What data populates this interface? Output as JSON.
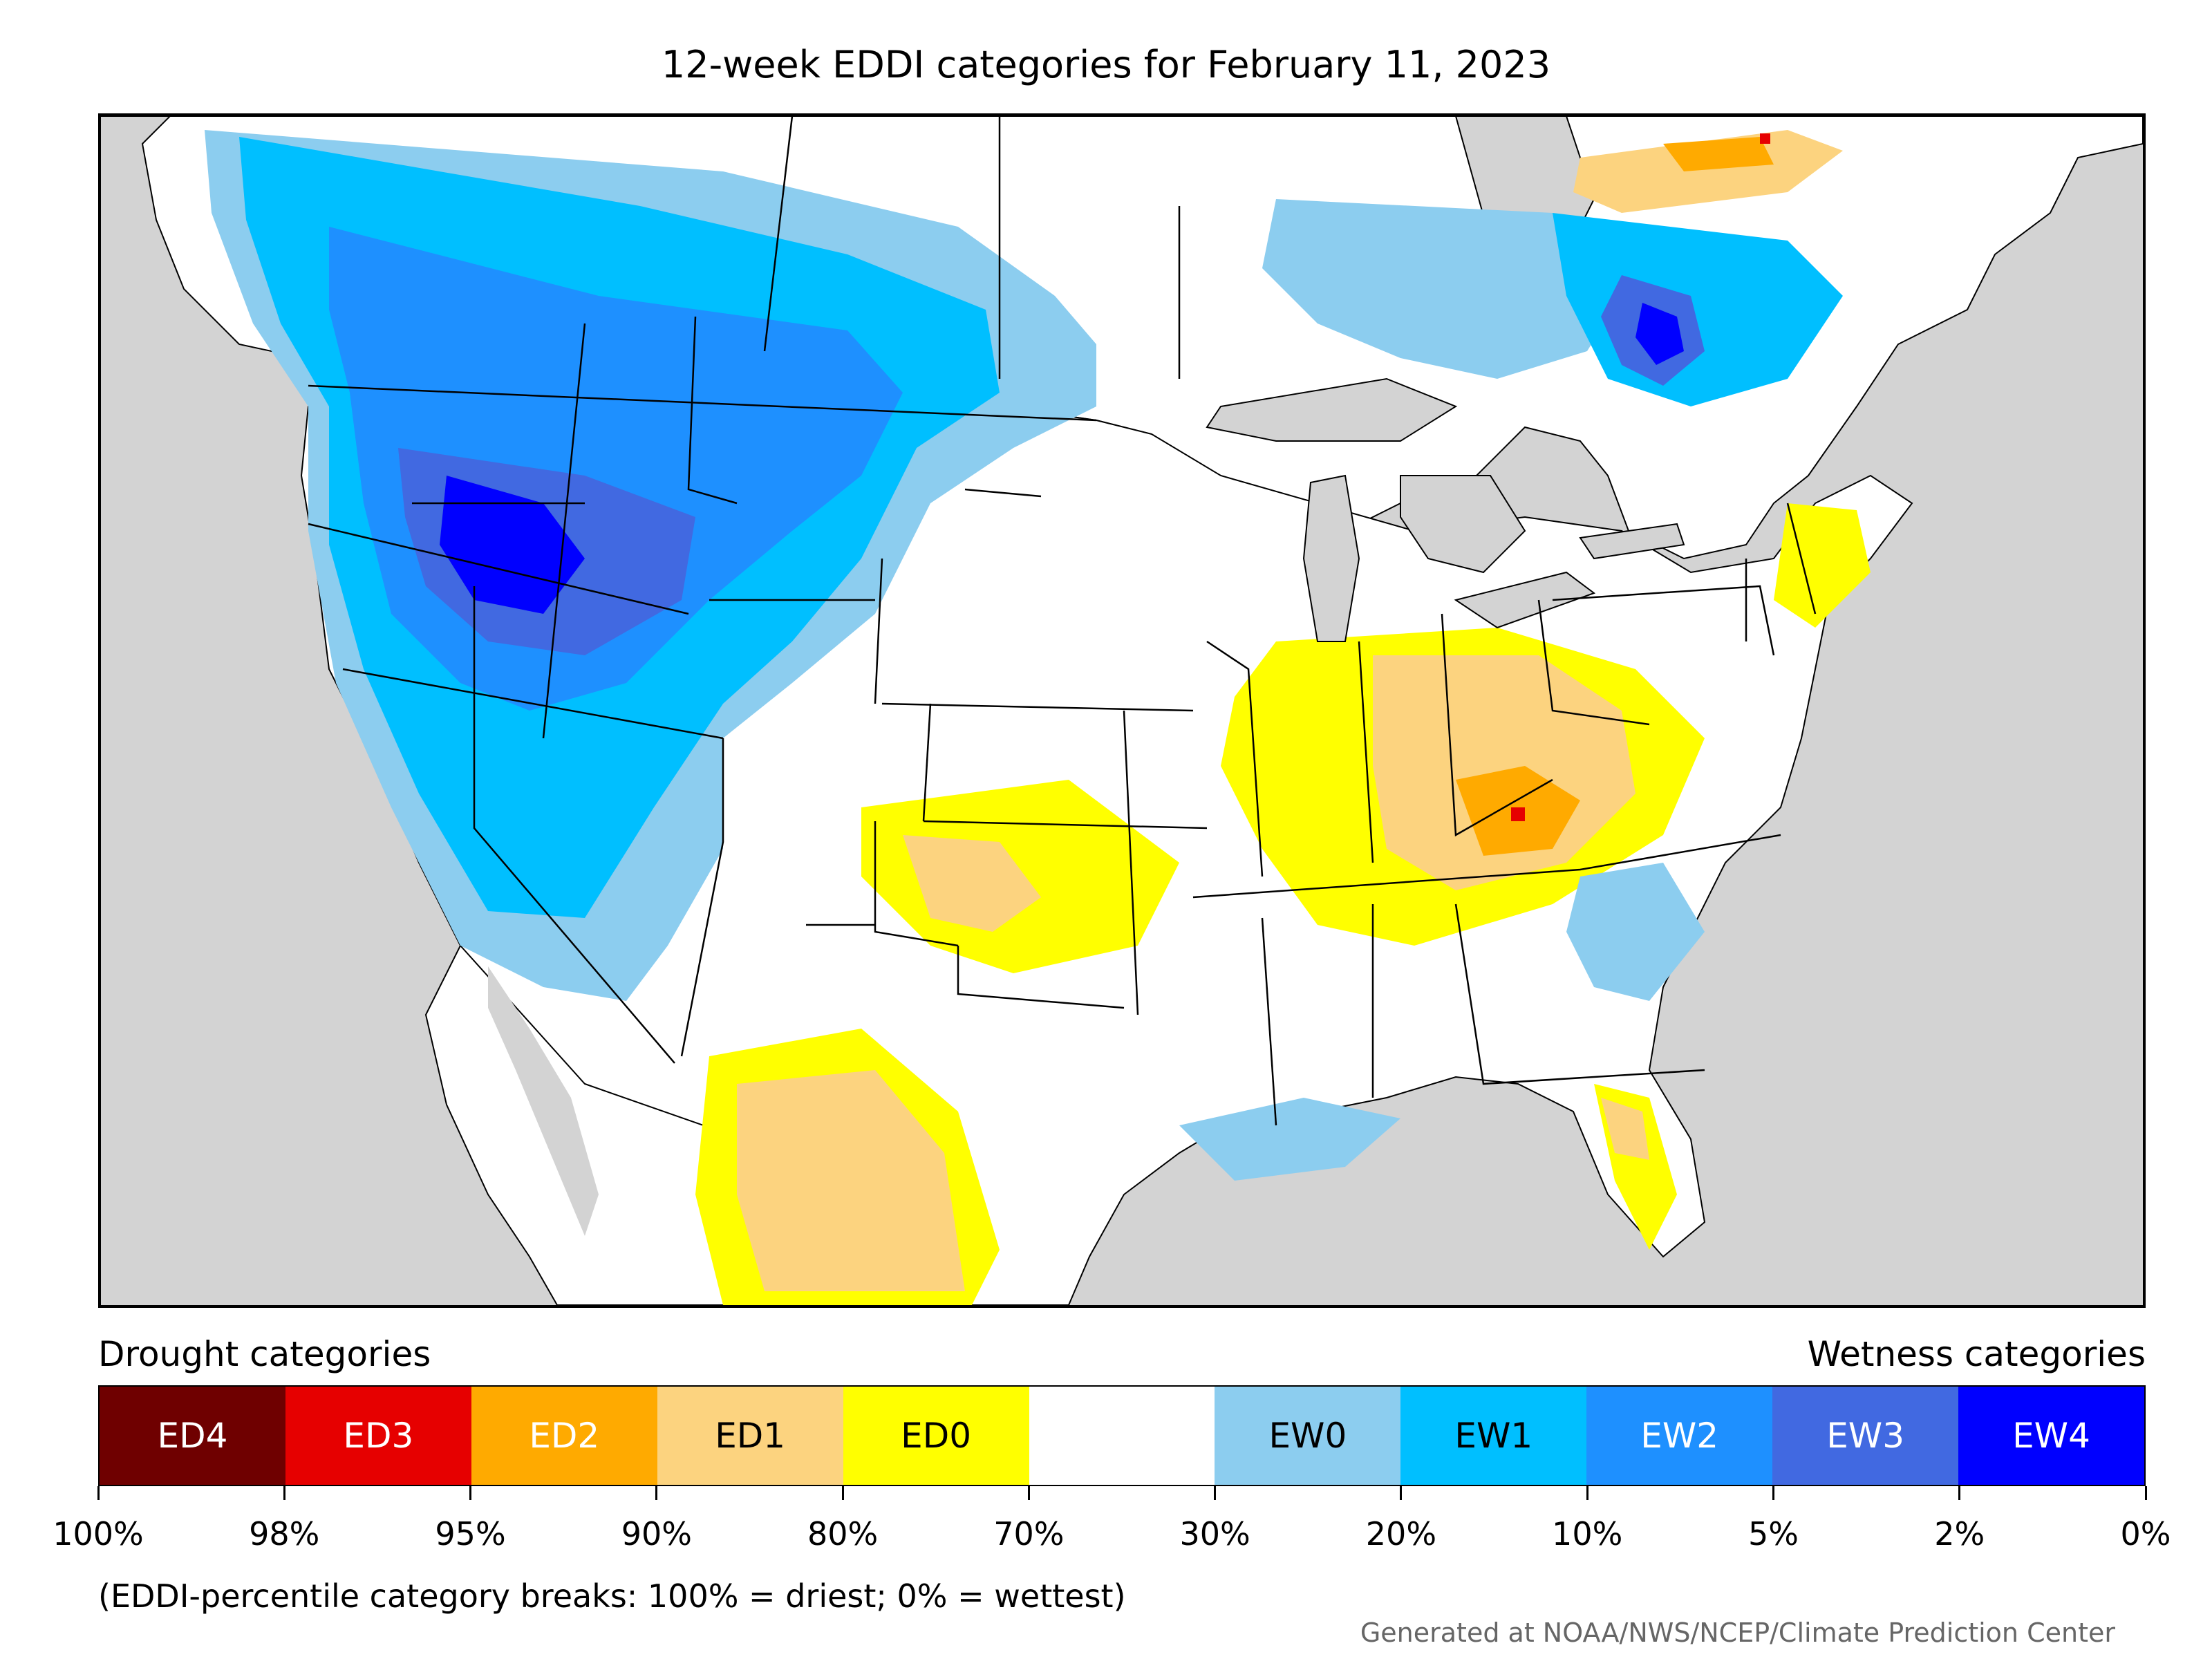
{
  "title": "12-week EDDI categories for February 11, 2023",
  "legend": {
    "drought_heading": "Drought categories",
    "wetness_heading": "Wetness categories",
    "categories": [
      {
        "label": "ED4",
        "color": "#6f0000",
        "text_color": "#ffffff"
      },
      {
        "label": "ED3",
        "color": "#e60000",
        "text_color": "#ffffff"
      },
      {
        "label": "ED2",
        "color": "#ffaa00",
        "text_color": "#ffffff"
      },
      {
        "label": "ED1",
        "color": "#fcd37f",
        "text_color": "#000000"
      },
      {
        "label": "ED0",
        "color": "#ffff00",
        "text_color": "#000000"
      },
      {
        "label": "",
        "color": "#ffffff",
        "text_color": "#000000"
      },
      {
        "label": "EW0",
        "color": "#8ccdef",
        "text_color": "#000000"
      },
      {
        "label": "EW1",
        "color": "#00bfff",
        "text_color": "#000000"
      },
      {
        "label": "EW2",
        "color": "#1e90ff",
        "text_color": "#ffffff"
      },
      {
        "label": "EW3",
        "color": "#4169e1",
        "text_color": "#ffffff"
      },
      {
        "label": "EW4",
        "color": "#0000ff",
        "text_color": "#ffffff"
      }
    ],
    "breaks": [
      "100%",
      "98%",
      "95%",
      "90%",
      "80%",
      "70%",
      "30%",
      "20%",
      "10%",
      "5%",
      "2%",
      "0%"
    ]
  },
  "footnote": "(EDDI-percentile category breaks: 100% = driest; 0% = wettest)",
  "credit": "Generated at NOAA/NWS/NCEP/Climate Prediction Center",
  "colors": {
    "ocean": "#d3d3d3",
    "land": "#ffffff",
    "boundary": "#000000"
  }
}
